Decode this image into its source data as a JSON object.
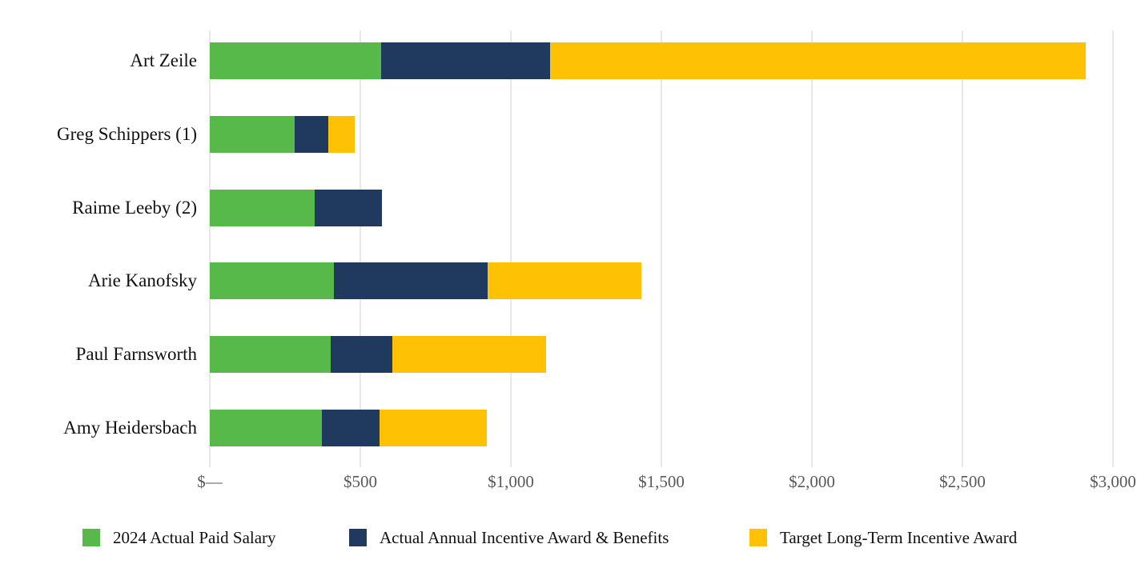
{
  "chart_data": {
    "type": "bar",
    "orientation": "horizontal",
    "stacked": true,
    "title": "",
    "categories": [
      "Art Zeile",
      "Greg Schippers (1)",
      "Raime Leeby (2)",
      "Arie Kanofsky",
      "Paul Farnsworth",
      "Amy Heidersbach"
    ],
    "series": [
      {
        "name": "2024 Actual Paid Salary",
        "color": "#56B94A",
        "values": [
          570,
          282,
          348,
          412,
          402,
          372
        ]
      },
      {
        "name": "Actual Annual Incentive Award & Benefits",
        "color": "#1F395F",
        "values": [
          560,
          112,
          223,
          511,
          205,
          191
        ]
      },
      {
        "name": "Target Long-Term Incentive Award",
        "color": "#FFC103",
        "values": [
          1780,
          88,
          0,
          511,
          511,
          356
        ]
      }
    ],
    "x_axis": {
      "tick_labels": [
        "$—",
        "$500",
        "$1,000",
        "$1,500",
        "$2,000",
        "$2,500",
        "$3,000"
      ],
      "tick_values": [
        0,
        500,
        1000,
        1500,
        2000,
        2500,
        3000
      ],
      "min": 0,
      "max": 3000,
      "grid": true
    },
    "legend_position": "bottom",
    "grid_color": "#E9E9E9",
    "axis_text_color": "#595959",
    "label_text_color": "#111111"
  }
}
